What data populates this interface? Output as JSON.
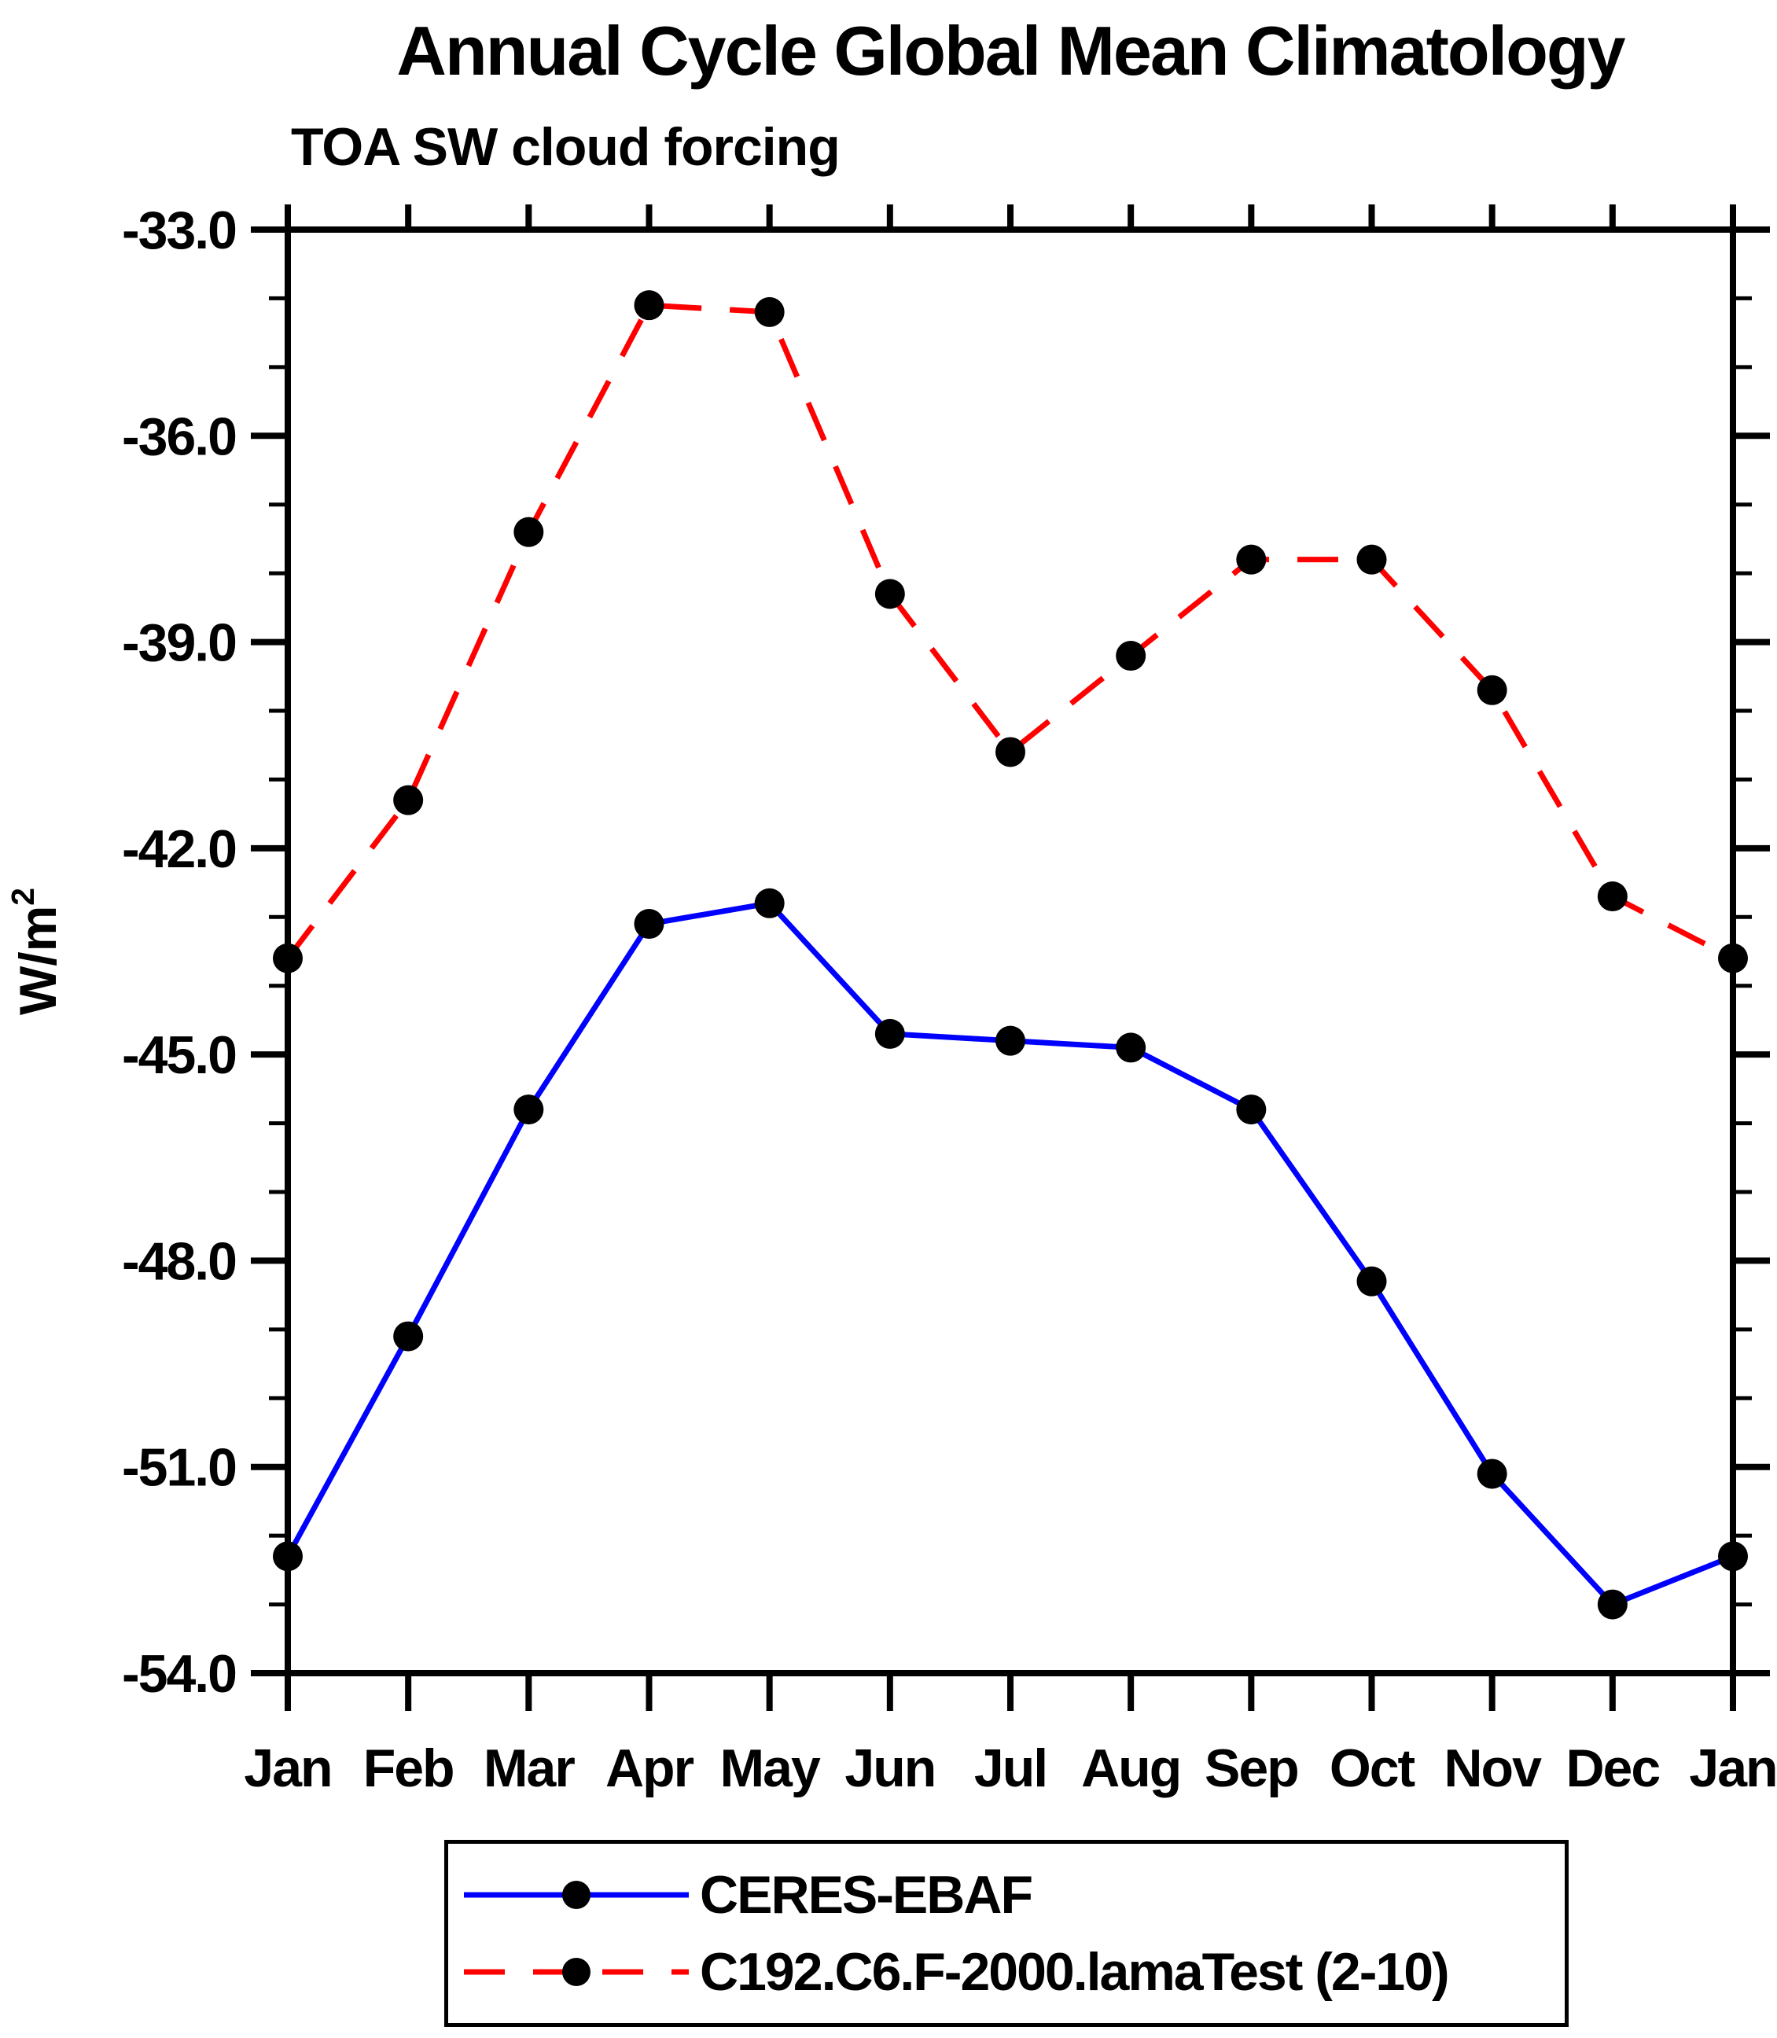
{
  "chart": {
    "title": "Annual Cycle Global Mean Climatology",
    "subtitle": "TOA SW cloud forcing",
    "ylabel_base": "W/m",
    "ylabel_exp": "2"
  },
  "chart_data": {
    "type": "line",
    "title": "Annual Cycle Global Mean Climatology",
    "subtitle": "TOA SW cloud forcing",
    "ylabel": "W/m²",
    "xlabel": "",
    "categories": [
      "Jan",
      "Feb",
      "Mar",
      "Apr",
      "May",
      "Jun",
      "Jul",
      "Aug",
      "Sep",
      "Oct",
      "Nov",
      "Dec",
      "Jan"
    ],
    "series": [
      {
        "name": "CERES-EBAF",
        "color": "#0000ff",
        "line_style": "solid",
        "marker": "circle",
        "marker_color": "#000000",
        "values": [
          -52.3,
          -49.1,
          -45.8,
          -43.1,
          -42.8,
          -44.7,
          -44.8,
          -44.9,
          -45.8,
          -48.3,
          -51.1,
          -53.0,
          -52.3
        ]
      },
      {
        "name": "C192.C6.F-2000.lamaTest (2-10)",
        "color": "#ff0000",
        "line_style": "dashed",
        "marker": "circle",
        "marker_color": "#000000",
        "values": [
          -43.6,
          -41.3,
          -37.4,
          -34.1,
          -34.2,
          -38.3,
          -40.6,
          -39.2,
          -37.8,
          -37.8,
          -39.7,
          -42.7,
          -43.6
        ]
      }
    ],
    "ylim": [
      -54.0,
      -33.0
    ],
    "yticks_major": [
      -33,
      -36,
      -39,
      -42,
      -45,
      -48,
      -51,
      -54
    ],
    "ytick_labels": [
      "-33.0",
      "-36.0",
      "-39.0",
      "-42.0",
      "-45.0",
      "-48.0",
      "-51.0",
      "-54.0"
    ],
    "minor_tick_interval": 1,
    "grid": false,
    "legend_position": "bottom"
  }
}
